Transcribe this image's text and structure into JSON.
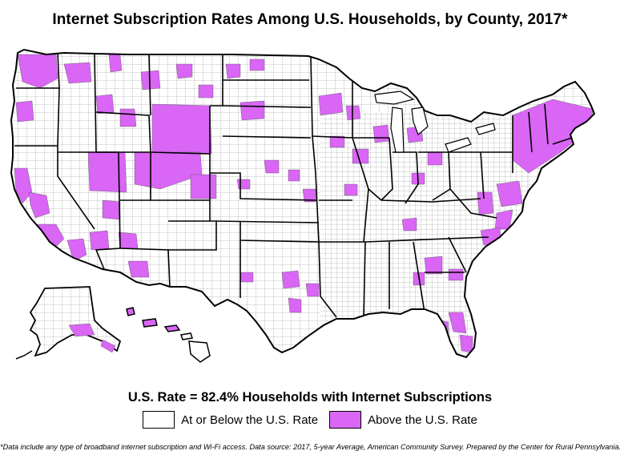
{
  "title": "Internet Subscription Rates Among U.S. Households, by County, 2017*",
  "us_rate_line": "U.S. Rate = 82.4% Households with Internet Subscriptions",
  "legend": [
    {
      "label": "At or Below the U.S. Rate",
      "color": "#ffffff"
    },
    {
      "label": "Above the U.S. Rate",
      "color": "#d966f5"
    }
  ],
  "footnote": "*Data include any type of broadband internet subscription and Wi-Fi access. Data source: 2017, 5-year Average, American Community Survey. Prepared by the Center for Rural Pennsylvania.",
  "colors": {
    "above": "#d966f5",
    "below": "#ffffff",
    "border": "#000000"
  }
}
